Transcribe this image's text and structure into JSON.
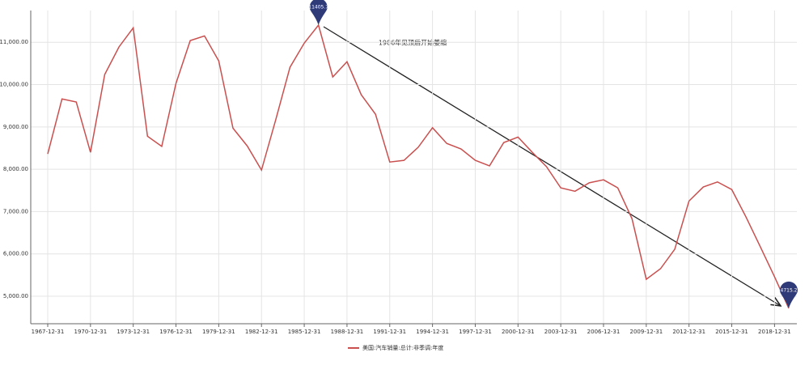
{
  "chart_data": {
    "type": "line",
    "categories": [
      "1967-12-31",
      null,
      null,
      "1970-12-31",
      null,
      null,
      "1973-12-31",
      null,
      null,
      "1976-12-31",
      null,
      null,
      "1979-12-31",
      null,
      null,
      "1982-12-31",
      null,
      null,
      "1985-12-31",
      null,
      null,
      "1988-12-31",
      null,
      null,
      "1991-12-31",
      null,
      null,
      "1994-12-31",
      null,
      null,
      "1997-12-31",
      null,
      null,
      "2000-12-31",
      null,
      null,
      "2003-12-31",
      null,
      null,
      "2006-12-31",
      null,
      null,
      "2009-12-31",
      null,
      null,
      "2012-12-31",
      null,
      null,
      "2015-12-31",
      null,
      null,
      "2018-12-31",
      null
    ],
    "series": [
      {
        "name": "美国:汽车销量:总计:非季调:年度",
        "color": "#c9504f",
        "values": [
          8363,
          9660,
          9590,
          8400,
          10240,
          10890,
          11340,
          8780,
          8540,
          10030,
          11040,
          11150,
          10560,
          8970,
          8550,
          7980,
          9170,
          10410,
          10980,
          11405.7,
          10180,
          10540,
          9760,
          9300,
          8170,
          8210,
          8520,
          8980,
          8610,
          8480,
          8210,
          8080,
          8630,
          8760,
          8400,
          8060,
          7560,
          7480,
          7680,
          7750,
          7560,
          6830,
          5400,
          5650,
          6110,
          7250,
          7580,
          7700,
          7520,
          6870,
          6170,
          5460,
          4715.2
        ],
        "value_labels": [
          null,
          null,
          null,
          null,
          null,
          null,
          null,
          null,
          null,
          null,
          null,
          null,
          null,
          null,
          null,
          null,
          null,
          null,
          null,
          "11405.7",
          null,
          null,
          null,
          null,
          null,
          null,
          null,
          null,
          null,
          null,
          null,
          null,
          null,
          null,
          null,
          null,
          null,
          null,
          null,
          null,
          null,
          null,
          null,
          null,
          null,
          null,
          null,
          null,
          null,
          null,
          null,
          null,
          "4715.2"
        ]
      }
    ],
    "ylim": [
      4350,
      11750
    ],
    "yticks": [
      {
        "value": 5000,
        "label": "5,000.00"
      },
      {
        "value": 6000,
        "label": "6,000.00"
      },
      {
        "value": 7000,
        "label": "7,000.00"
      },
      {
        "value": 8000,
        "label": "8,000.00"
      },
      {
        "value": 9000,
        "label": "9,000.00"
      },
      {
        "value": 10000,
        "label": "10,000.00"
      },
      {
        "value": 11000,
        "label": "11,000.00"
      }
    ],
    "annotation": "1986年见顶后开始萎缩",
    "grid": true,
    "legend": "bottom"
  }
}
